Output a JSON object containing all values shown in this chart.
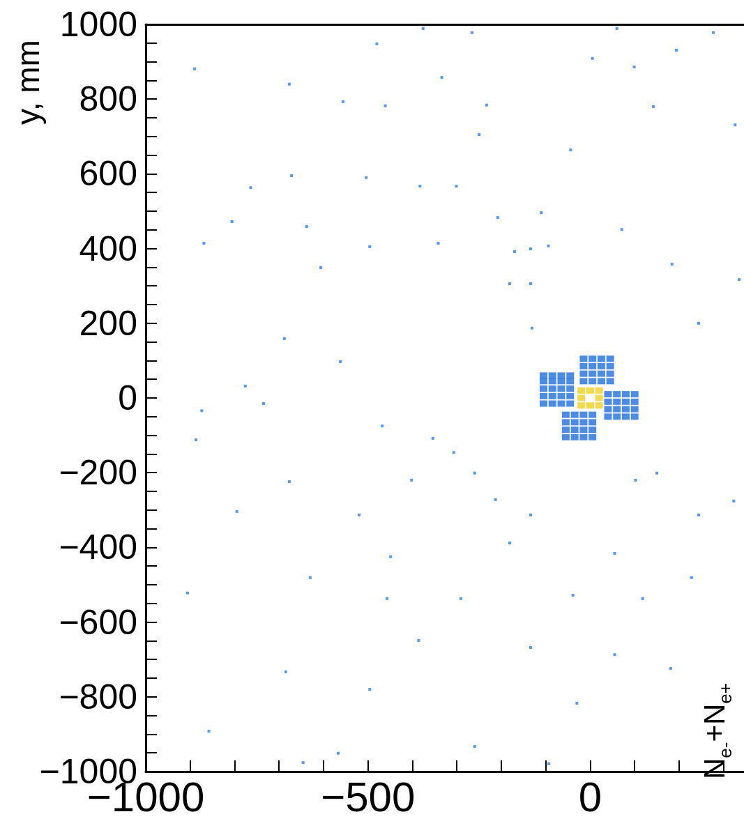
{
  "chart_data": {
    "type": "scatter",
    "ylabel": "y, mm",
    "clabel": "N$_{e-}$+N$_{e+}$",
    "xlim": [
      -1000,
      346
    ],
    "ylim": [
      -1000,
      1000
    ],
    "xticks": [
      -1000,
      {
        "value": -900,
        "label": null
      },
      {
        "value": -800,
        "label": null
      },
      {
        "value": -700,
        "label": null
      },
      {
        "value": -600,
        "label": null
      },
      -500,
      {
        "value": -400,
        "label": null
      },
      {
        "value": -300,
        "label": null
      },
      {
        "value": -200,
        "label": null
      },
      {
        "value": -100,
        "label": null
      },
      0,
      {
        "value": 100,
        "label": null
      },
      {
        "value": 200,
        "label": null
      },
      {
        "value": 300,
        "label": null
      }
    ],
    "yticks": [
      -1000,
      {
        "value": -950,
        "label": null
      },
      {
        "value": -900,
        "label": null
      },
      {
        "value": -850,
        "label": null
      },
      -800,
      {
        "value": -750,
        "label": null
      },
      {
        "value": -700,
        "label": null
      },
      {
        "value": -650,
        "label": null
      },
      -600,
      {
        "value": -550,
        "label": null
      },
      {
        "value": -500,
        "label": null
      },
      {
        "value": -450,
        "label": null
      },
      -400,
      {
        "value": -350,
        "label": null
      },
      {
        "value": -300,
        "label": null
      },
      {
        "value": -250,
        "label": null
      },
      -200,
      {
        "value": -150,
        "label": null
      },
      {
        "value": -100,
        "label": null
      },
      {
        "value": -50,
        "label": null
      },
      0,
      {
        "value": 50,
        "label": null
      },
      {
        "value": 100,
        "label": null
      },
      {
        "value": 150,
        "label": null
      },
      200,
      {
        "value": 250,
        "label": null
      },
      {
        "value": 300,
        "label": null
      },
      {
        "value": 350,
        "label": null
      },
      400,
      {
        "value": 450,
        "label": null
      },
      {
        "value": 500,
        "label": null
      },
      {
        "value": 550,
        "label": null
      },
      600,
      {
        "value": 650,
        "label": null
      },
      {
        "value": 700,
        "label": null
      },
      {
        "value": 750,
        "label": null
      },
      800,
      {
        "value": 850,
        "label": null
      },
      {
        "value": 900,
        "label": null
      },
      {
        "value": 950,
        "label": null
      },
      1000
    ],
    "grid": false,
    "marker": "square",
    "series": [
      {
        "color": "#2a80f5",
        "x": [
          -376,
          -266,
          60,
          277,
          -480,
          -890,
          -677,
          -556,
          -461,
          -334,
          -233,
          -250,
          5,
          99,
          194,
          326,
          142,
          -672,
          -504,
          -383,
          -301,
          -44,
          -110,
          -208,
          -764,
          -806,
          -869,
          -638,
          -606,
          -496,
          -342,
          -170,
          -134,
          -94,
          -181,
          -134,
          71,
          184,
          335,
          244,
          -131,
          -688,
          -562,
          -776,
          -874,
          -735,
          -468,
          -354,
          -307,
          -887,
          -677,
          -402,
          -260,
          -213,
          -520,
          -795,
          -134,
          102,
          150,
          244,
          323,
          -449,
          -181,
          55,
          -630,
          -906,
          -457,
          -291,
          -39,
          118,
          228,
          -386,
          -134,
          55,
          -685,
          -496,
          -30,
          181,
          -858,
          -567,
          -260,
          -93,
          -646
        ],
        "values": [
          989,
          978,
          989,
          978,
          948,
          881,
          840,
          793,
          782,
          858,
          784,
          705,
          909,
          886,
          931,
          731,
          780,
          595,
          590,
          567,
          567,
          664,
          496,
          483,
          563,
          472,
          414,
          459,
          349,
          405,
          414,
          392,
          399,
          407,
          306,
          306,
          451,
          358,
          317,
          200,
          187,
          159,
          97,
          32,
          -34,
          -15,
          -75,
          -108,
          -146,
          -112,
          -224,
          -220,
          -201,
          -272,
          -313,
          -304,
          -313,
          -220,
          -201,
          -313,
          -276,
          -425,
          -388,
          -416,
          -481,
          -522,
          -537,
          -537,
          -528,
          -537,
          -481,
          -649,
          -668,
          -687,
          -733,
          -780,
          -817,
          -724,
          -892,
          -951,
          -933,
          -979,
          -976
        ]
      },
      {
        "color": "#1f6fe0",
        "x": [
          -105,
          -85,
          -65,
          -45,
          -105,
          -85,
          -65,
          -45,
          -105,
          -85,
          -65,
          -45,
          -105,
          -85,
          -65,
          -45,
          -105,
          -85,
          -65,
          -45,
          -15,
          5,
          25,
          45,
          -15,
          5,
          25,
          45,
          -15,
          5,
          25,
          45,
          -15,
          5,
          25,
          45,
          40,
          60,
          80,
          100,
          40,
          60,
          80,
          100,
          40,
          60,
          80,
          100,
          40,
          60,
          80,
          100,
          -55,
          -35,
          -15,
          5,
          -55,
          -35,
          -15,
          5,
          -55,
          -35,
          -15,
          5,
          -55,
          -35,
          -15,
          5
        ],
        "values": [
          -15,
          -15,
          -15,
          -15,
          5,
          5,
          5,
          5,
          25,
          25,
          25,
          25,
          45,
          45,
          45,
          45,
          60,
          60,
          60,
          60,
          45,
          45,
          45,
          45,
          65,
          65,
          65,
          65,
          85,
          85,
          85,
          85,
          105,
          105,
          105,
          105,
          -50,
          -50,
          -50,
          -50,
          -30,
          -30,
          -30,
          -30,
          -10,
          -10,
          -10,
          -10,
          10,
          10,
          10,
          10,
          -105,
          -105,
          -105,
          -105,
          -85,
          -85,
          -85,
          -85,
          -65,
          -65,
          -65,
          -65,
          -45,
          -45,
          -45,
          -45
        ]
      },
      {
        "color": "#f0d020",
        "x": [
          -20,
          0,
          20,
          -20,
          20,
          -20,
          0,
          20
        ],
        "values": [
          -20,
          -20,
          -20,
          0,
          0,
          20,
          20,
          20
        ]
      }
    ]
  }
}
